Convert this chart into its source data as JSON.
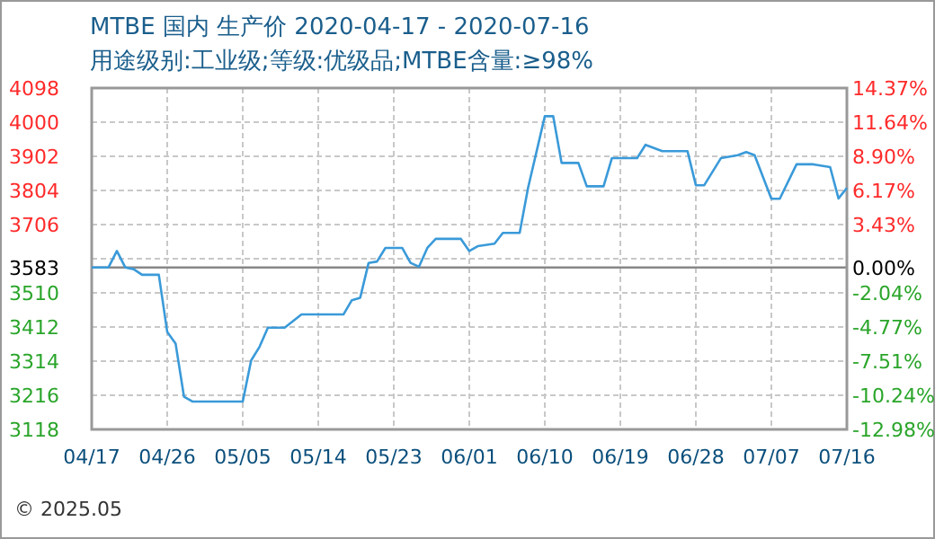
{
  "chart_data": {
    "type": "line",
    "title": "MTBE 国内 生产价 2020-04-17 - 2020-07-16",
    "subtitle": "用途级别:工业级;等级:优级品;MTBE含量:≥98%",
    "annotations": [
      "© 2025.05"
    ],
    "x": [
      "2020-04-17",
      "2020-04-19",
      "2020-04-20",
      "2020-04-21",
      "2020-04-22",
      "2020-04-23",
      "2020-04-25",
      "2020-04-26",
      "2020-04-27",
      "2020-04-28",
      "2020-04-29",
      "2020-05-05",
      "2020-05-06",
      "2020-05-07",
      "2020-05-08",
      "2020-05-10",
      "2020-05-12",
      "2020-05-17",
      "2020-05-18",
      "2020-05-19",
      "2020-05-20",
      "2020-05-21",
      "2020-05-22",
      "2020-05-24",
      "2020-05-25",
      "2020-05-26",
      "2020-05-27",
      "2020-05-28",
      "2020-05-31",
      "2020-06-01",
      "2020-06-02",
      "2020-06-04",
      "2020-06-05",
      "2020-06-07",
      "2020-06-08",
      "2020-06-10",
      "2020-06-11",
      "2020-06-12",
      "2020-06-14",
      "2020-06-15",
      "2020-06-17",
      "2020-06-18",
      "2020-06-21",
      "2020-06-22",
      "2020-06-24",
      "2020-06-27",
      "2020-06-28",
      "2020-06-29",
      "2020-07-01",
      "2020-07-03",
      "2020-07-04",
      "2020-07-05",
      "2020-07-07",
      "2020-07-08",
      "2020-07-10",
      "2020-07-12",
      "2020-07-14",
      "2020-07-15",
      "2020-07-16"
    ],
    "series": [
      {
        "color": "#3a9ad9",
        "values": [
          3583,
          3583,
          3630,
          3583,
          3578,
          3562,
          3562,
          3398,
          3364,
          3212,
          3198,
          3198,
          3316,
          3355,
          3410,
          3410,
          3448,
          3448,
          3489,
          3496,
          3596,
          3600,
          3639,
          3639,
          3596,
          3585,
          3639,
          3665,
          3665,
          3630,
          3644,
          3651,
          3682,
          3682,
          3811,
          4017,
          4017,
          3883,
          3883,
          3816,
          3816,
          3897,
          3897,
          3935,
          3917,
          3917,
          3819,
          3819,
          3897,
          3905,
          3914,
          3905,
          3780,
          3780,
          3879,
          3879,
          3871,
          3781,
          3811
        ]
      }
    ],
    "xlim": [
      "2020-04-17",
      "2020-07-16"
    ],
    "xticks": [
      {
        "value": "2020-04-17",
        "label": "04/17"
      },
      {
        "value": "2020-04-26",
        "label": "04/26"
      },
      {
        "value": "2020-05-05",
        "label": "05/05"
      },
      {
        "value": "2020-05-14",
        "label": "05/14"
      },
      {
        "value": "2020-05-23",
        "label": "05/23"
      },
      {
        "value": "2020-06-01",
        "label": "06/01"
      },
      {
        "value": "2020-06-10",
        "label": "06/10"
      },
      {
        "value": "2020-06-19",
        "label": "06/19"
      },
      {
        "value": "2020-06-28",
        "label": "06/28"
      },
      {
        "value": "2020-07-07",
        "label": "07/07"
      },
      {
        "value": "2020-07-16",
        "label": "07/16"
      }
    ],
    "ylim": [
      3118,
      4098
    ],
    "yticks": [
      4098,
      4000,
      3902,
      3804,
      3706,
      {
        "value": 3608,
        "label": null
      },
      3583,
      3510,
      3412,
      3314,
      3216,
      3118
    ],
    "y2lim": [
      -12.98,
      14.37
    ],
    "y2ticks": [
      {
        "value": 14.37,
        "label": "14.37%"
      },
      {
        "value": 11.64,
        "label": "11.64%"
      },
      {
        "value": 8.9,
        "label": "8.90%"
      },
      {
        "value": 6.17,
        "label": "6.17%"
      },
      {
        "value": 3.43,
        "label": "3.43%"
      },
      {
        "value": 0,
        "label": "0.00%"
      },
      {
        "value": -2.04,
        "label": "-2.04%"
      },
      {
        "value": -4.77,
        "label": "-4.77%"
      },
      {
        "value": -7.51,
        "label": "-7.51%"
      },
      {
        "value": -10.24,
        "label": "-10.24%"
      },
      {
        "value": -12.98,
        "label": "-12.98%"
      }
    ],
    "ref_lines": [
      {
        "axis": "y",
        "value": 3583,
        "color": "#888888",
        "line_style": "solid"
      }
    ],
    "grid": true,
    "line_style": "solid",
    "marker": "none"
  }
}
